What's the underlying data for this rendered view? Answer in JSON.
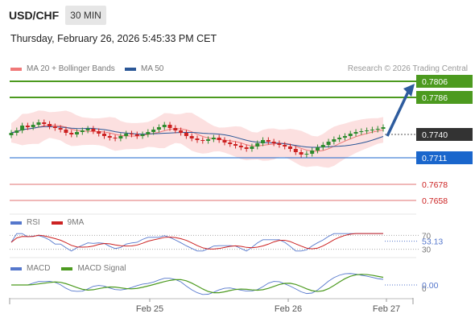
{
  "header": {
    "symbol": "USD/CHF",
    "timeframe": "30 MIN",
    "datetime": "Thursday, February 26, 2026 5:45:33 PM CET"
  },
  "legend": {
    "ma20_label": "MA 20 + Bollinger Bands",
    "ma50_label": "MA 50",
    "research": "Research © 2026 Trading Central"
  },
  "colors": {
    "ma20": "#f07878",
    "ma50": "#2b5797",
    "bollinger_fill": "#fbd5d5",
    "resistance": "#4c9a1f",
    "support": "#1a66cc",
    "target_red": "#e07070",
    "candle_up": "#2e8b2e",
    "candle_down": "#cc2222",
    "current": "#333333",
    "arrow": "#2e5c9e",
    "rsi": "#5577cc",
    "rsi_ma": "#cc2222",
    "macd": "#5577cc",
    "macd_signal": "#4c9a1f"
  },
  "levels": [
    {
      "value": "0.7806",
      "kind": "resistance"
    },
    {
      "value": "0.7786",
      "kind": "resistance"
    },
    {
      "value": "0.7740",
      "kind": "current"
    },
    {
      "value": "0.7711",
      "kind": "support"
    },
    {
      "value": "0.7678",
      "kind": "target"
    },
    {
      "value": "0.7658",
      "kind": "target"
    }
  ],
  "rsi_panel": {
    "label": "RSI",
    "ma_label": "9MA",
    "current": "53.13",
    "ticks": [
      "70",
      "30"
    ]
  },
  "macd_panel": {
    "label": "MACD",
    "signal_label": "MACD Signal",
    "current": "0.00",
    "ticks": [
      "0"
    ]
  },
  "chart_data": {
    "type": "candlestick",
    "x_ticks": [
      "Feb 25",
      "Feb 26",
      "Feb 27"
    ],
    "price_ylim": [
      0.7645,
      0.7815
    ],
    "current_price": 0.774,
    "closes": [
      0.7742,
      0.7745,
      0.7751,
      0.7749,
      0.7752,
      0.7755,
      0.7753,
      0.775,
      0.7748,
      0.7746,
      0.7742,
      0.774,
      0.7743,
      0.7745,
      0.7747,
      0.7744,
      0.7741,
      0.7738,
      0.7736,
      0.7735,
      0.7738,
      0.7741,
      0.774,
      0.7738,
      0.774,
      0.7743,
      0.7746,
      0.7749,
      0.7752,
      0.7748,
      0.7745,
      0.7742,
      0.7738,
      0.7735,
      0.7733,
      0.7732,
      0.7734,
      0.7736,
      0.7733,
      0.773,
      0.7728,
      0.7726,
      0.7724,
      0.7722,
      0.7725,
      0.7729,
      0.7733,
      0.7731,
      0.7729,
      0.7727,
      0.7725,
      0.7722,
      0.7718,
      0.7715,
      0.7716,
      0.772,
      0.7724,
      0.7727,
      0.7731,
      0.7734,
      0.7736,
      0.7738,
      0.7741,
      0.7743,
      0.7744,
      0.7745,
      0.7746,
      0.7747,
      0.7749
    ],
    "rsi_lim": [
      20,
      80
    ],
    "macd_lim": [
      -0.0008,
      0.0008
    ]
  }
}
